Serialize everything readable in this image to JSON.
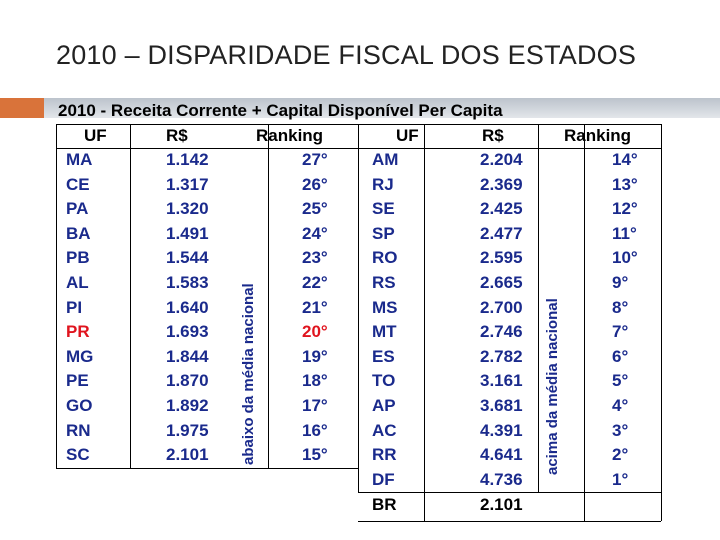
{
  "slide_title": "2010 – DISPARIDADE FISCAL DOS ESTADOS",
  "table_title": "2010 - Receita Corrente + Capital Disponível Per Capita",
  "headers": {
    "uf": "UF",
    "rs": "R$",
    "ranking": "Ranking"
  },
  "left_rows": [
    {
      "uf": "MA",
      "rs": "1.142",
      "rank": "27°"
    },
    {
      "uf": "CE",
      "rs": "1.317",
      "rank": "26°"
    },
    {
      "uf": "PA",
      "rs": "1.320",
      "rank": "25°"
    },
    {
      "uf": "BA",
      "rs": "1.491",
      "rank": "24°"
    },
    {
      "uf": "PB",
      "rs": "1.544",
      "rank": "23°"
    },
    {
      "uf": "AL",
      "rs": "1.583",
      "rank": "22°"
    },
    {
      "uf": "PI",
      "rs": "1.640",
      "rank": "21°"
    },
    {
      "uf": "PR",
      "rs": "1.693",
      "rank": "20°",
      "highlight": true
    },
    {
      "uf": "MG",
      "rs": "1.844",
      "rank": "19°"
    },
    {
      "uf": "PE",
      "rs": "1.870",
      "rank": "18°"
    },
    {
      "uf": "GO",
      "rs": "1.892",
      "rank": "17°"
    },
    {
      "uf": "RN",
      "rs": "1.975",
      "rank": "16°"
    },
    {
      "uf": "SC",
      "rs": "2.101",
      "rank": "15°"
    }
  ],
  "right_rows": [
    {
      "uf": "AM",
      "rs": "2.204",
      "rank": "14°"
    },
    {
      "uf": "RJ",
      "rs": "2.369",
      "rank": "13°"
    },
    {
      "uf": "SE",
      "rs": "2.425",
      "rank": "12°"
    },
    {
      "uf": "SP",
      "rs": "2.477",
      "rank": "11°"
    },
    {
      "uf": "RO",
      "rs": "2.595",
      "rank": "10°"
    },
    {
      "uf": "RS",
      "rs": "2.665",
      "rank": "9°"
    },
    {
      "uf": "MS",
      "rs": "2.700",
      "rank": "8°"
    },
    {
      "uf": "MT",
      "rs": "2.746",
      "rank": "7°"
    },
    {
      "uf": "ES",
      "rs": "2.782",
      "rank": "6°"
    },
    {
      "uf": "TO",
      "rs": "3.161",
      "rank": "5°"
    },
    {
      "uf": "AP",
      "rs": "3.681",
      "rank": "4°"
    },
    {
      "uf": "AC",
      "rs": "4.391",
      "rank": "3°"
    },
    {
      "uf": "RR",
      "rs": "4.641",
      "rank": "2°"
    },
    {
      "uf": "DF",
      "rs": "4.736",
      "rank": "1°"
    }
  ],
  "total_row": {
    "uf": "BR",
    "rs": "2.101"
  },
  "left_side_label": "abaixo da média nacional",
  "right_side_label": "acima da média nacional",
  "colors": {
    "data_blue": "#1a2a8c",
    "highlight_red": "#e0141e",
    "accent_orange": "#d9733a"
  }
}
